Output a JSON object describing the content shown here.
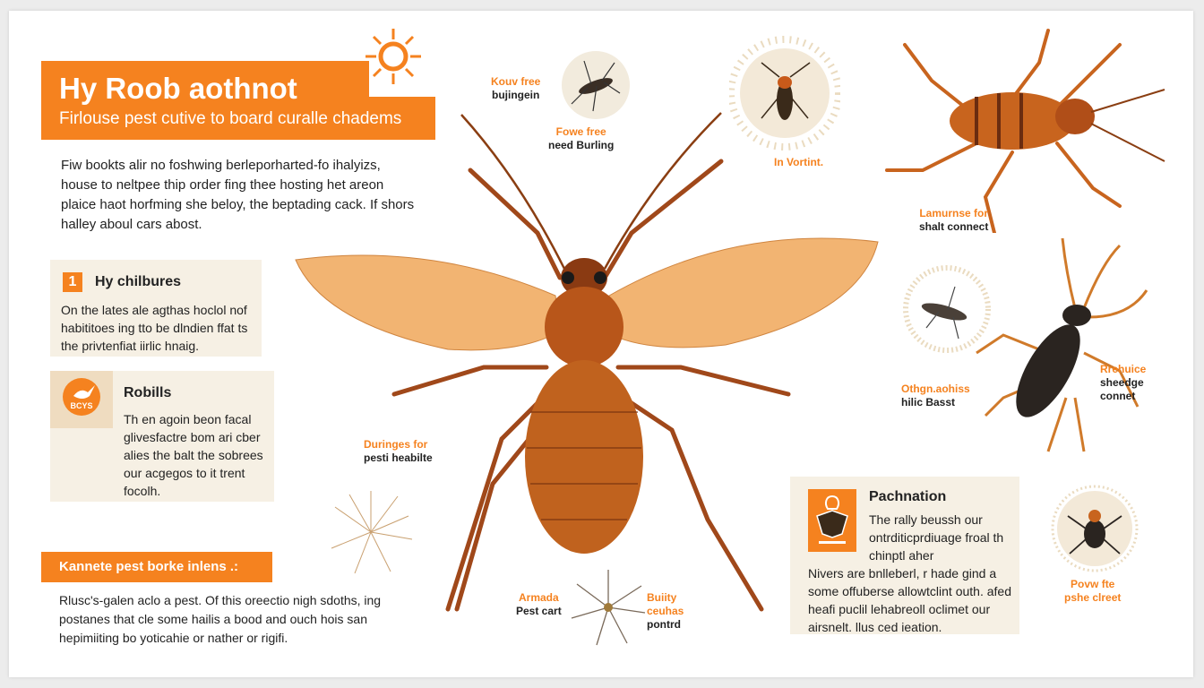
{
  "header": {
    "title": "Hy Roob aothnot",
    "subtitle": "Firlouse pest cutive to board curalle chadems"
  },
  "intro": "Fiw bookts alir no foshwing berleporharted-fo ihalyizs, house to neltpee thip order fing thee hosting het areon plaice haot horfming she beloy, the beptading cack. If shors halley aboul cars abost.",
  "cards": [
    {
      "number": "1",
      "title": "Hy chilbures",
      "body": "On the lates ale agthas hoclol nof habititoes ing tto be dlndien ffat ts the privtenfiat iirlic hnaig.",
      "icon": "number-badge"
    },
    {
      "title": "Robills",
      "body": "Th en agoin beon facal glivesfactre bom ari cber alies the balt the sobrees our acgegos to it trent focolh.",
      "icon": "insect-badge-icon",
      "icon_text": "BCYS"
    },
    {
      "title": "Pachnation",
      "body_top": "The rally beussh our ontrditicprdiuage froal th chinptl aher",
      "body_bottom": "Nivers are bnlleberl, r hade gind a some offuberse allowtclint outh. afed heafi puclil lehabreoll oclimet our airsnelt. llus ced ieation.",
      "icon": "moth-badge-icon"
    }
  ],
  "band": {
    "label": "Kannete pest borke inlens .:"
  },
  "bottom_text": "Rlusc's-galen aclo a pest. Of this oreectio nigh sdoths, ing postanes that cle some hailis a bood and ouch hois san hepimiiting bo yoticahie or nather or rigifi.",
  "labels": [
    {
      "orange": "Kouv free",
      "black": "bujingein"
    },
    {
      "orange": "Fowe free",
      "black": "need Burling"
    },
    {
      "orange": "In Vortint.",
      "black": ""
    },
    {
      "orange": "Lamurnse for",
      "black": "shalt connect"
    },
    {
      "orange": "Rrehuice",
      "black": "sheedge connet"
    },
    {
      "orange": "Othgn.aohiss",
      "black": "hilic Basst"
    },
    {
      "orange": "Duringes for",
      "black": "pesti heabilte"
    },
    {
      "orange": "Armada",
      "black": "Pest cart"
    },
    {
      "orange": "Buiity ceuhas",
      "black": "pontrd"
    },
    {
      "orange": "Povw fte",
      "black": "pshe clreet"
    }
  ],
  "colors": {
    "accent": "#f5821f",
    "card": "#f6f0e4",
    "insect": "#b8561a"
  }
}
